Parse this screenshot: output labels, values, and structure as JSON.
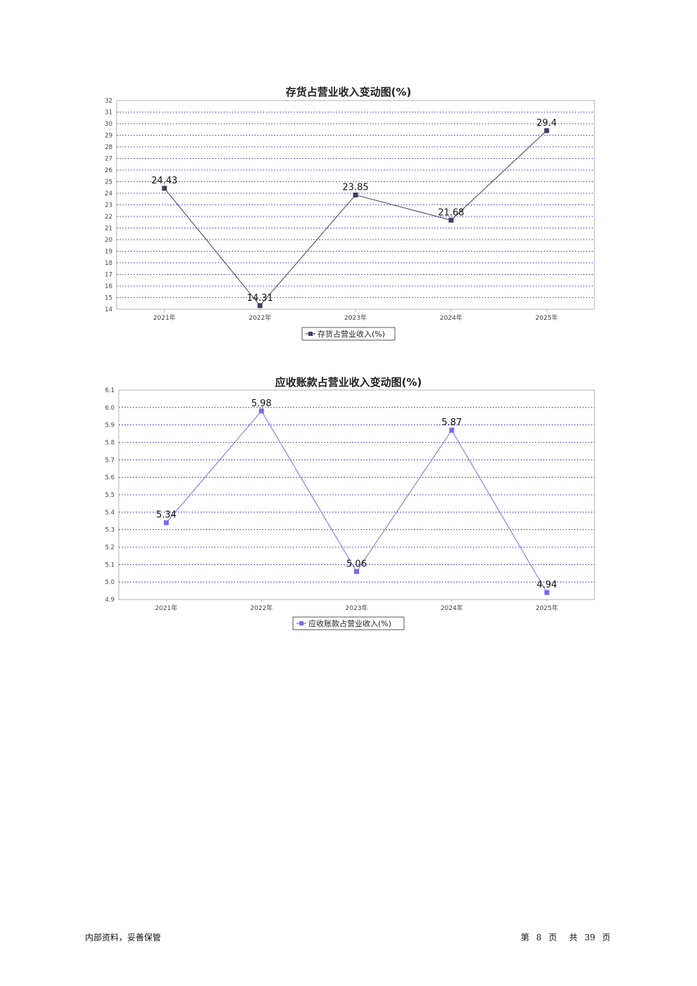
{
  "chart_data": [
    {
      "type": "line",
      "title": "存货占营业收入变动图(%)",
      "categories": [
        "2021年",
        "2022年",
        "2023年",
        "2024年",
        "2025年"
      ],
      "series": [
        {
          "name": "存货占营业收入(%)",
          "values": [
            24.43,
            14.31,
            23.85,
            21.68,
            29.4
          ]
        }
      ],
      "value_labels": [
        "24.43",
        "14.31",
        "23.85",
        "21.68",
        "29.4"
      ],
      "ylim": [
        14,
        32
      ],
      "yticks": [
        14,
        15,
        16,
        17,
        18,
        19,
        20,
        21,
        22,
        23,
        24,
        25,
        26,
        27,
        28,
        29,
        30,
        31,
        32
      ],
      "color": "#3f3f60",
      "grid": true,
      "legend": "bottom"
    },
    {
      "type": "line",
      "title": "应收账款占营业收入变动图(%)",
      "categories": [
        "2021年",
        "2022年",
        "2023年",
        "2024年",
        "2025年"
      ],
      "series": [
        {
          "name": "应收账款占营业收入(%)",
          "values": [
            5.34,
            5.98,
            5.06,
            5.87,
            4.94
          ]
        }
      ],
      "value_labels": [
        "5.34",
        "5.98",
        "5.06",
        "5.87",
        "4.94"
      ],
      "ylim": [
        4.9,
        6.1
      ],
      "yticks": [
        "4.9",
        "5.0",
        "5.1",
        "5.2",
        "5.3",
        "5.4",
        "5.5",
        "5.6",
        "5.7",
        "5.8",
        "5.9",
        "6.0",
        "6.1"
      ],
      "color": "#7b68ee",
      "grid": true,
      "legend": "bottom"
    }
  ],
  "footer": {
    "left": "内部资料，妥善保管",
    "page_prefix": "第",
    "page_number": "8",
    "page_unit": "页",
    "total_prefix": "共",
    "total_pages": "39",
    "total_unit": "页"
  }
}
